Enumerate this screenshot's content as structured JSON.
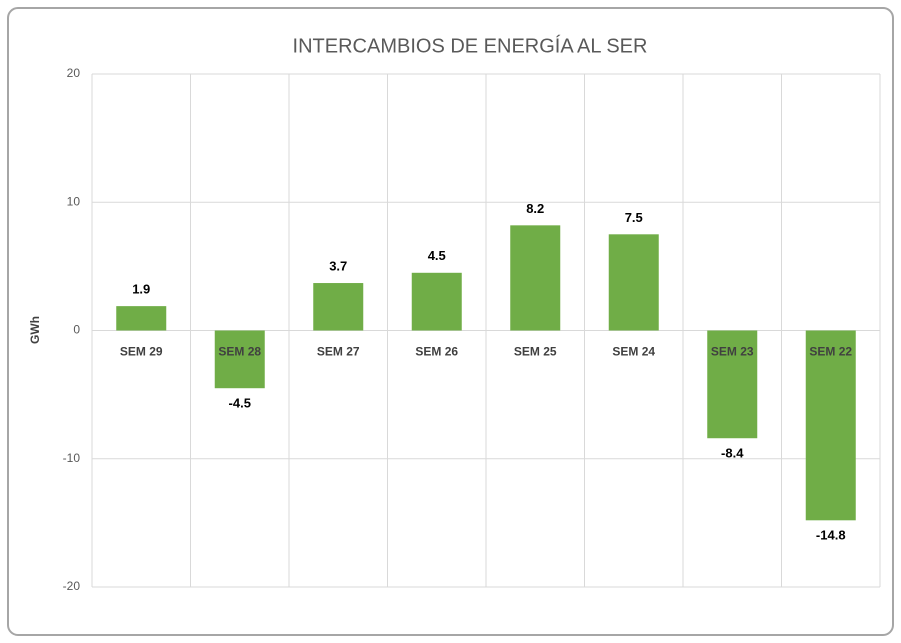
{
  "chart_data": {
    "type": "bar",
    "title": "INTERCAMBIOS DE ENERGÍA AL SER",
    "y_label": "GWh",
    "categories": [
      "SEM 29",
      "SEM 28",
      "SEM 27",
      "SEM 26",
      "SEM 25",
      "SEM 24",
      "SEM 23",
      "SEM 22"
    ],
    "values": [
      1.9,
      -4.5,
      3.7,
      4.5,
      8.2,
      7.5,
      -8.4,
      -14.8
    ],
    "color": "#70ad47",
    "ylim": [
      -20,
      20
    ],
    "yticks": [
      -20,
      -10,
      0,
      10,
      20
    ],
    "grid": true
  }
}
